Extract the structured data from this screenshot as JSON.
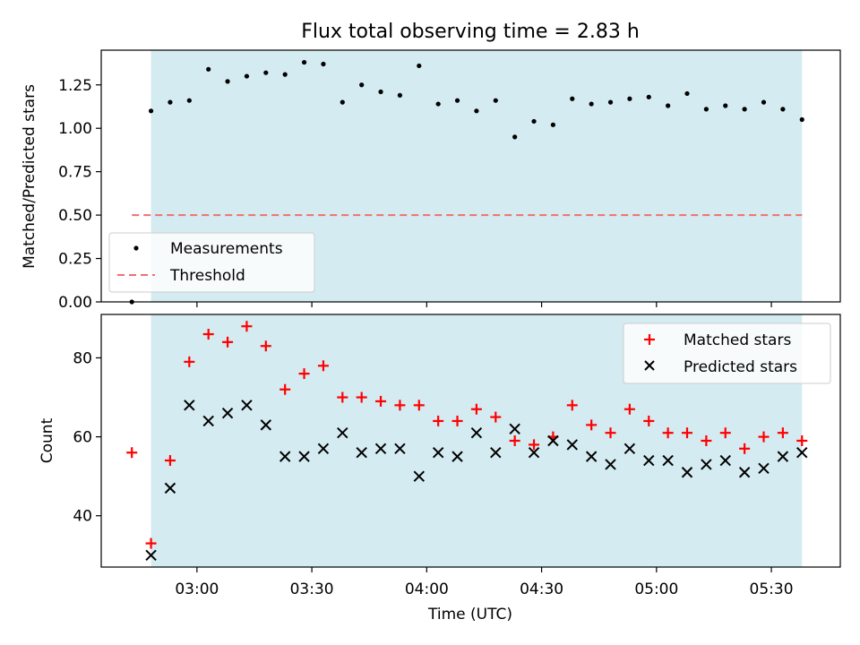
{
  "chart_data": [
    {
      "type": "scatter",
      "title": "Flux total observing time = 2.83 h",
      "xlabel": "",
      "ylabel": "Matched/Predicted stars",
      "ylim": [
        0,
        1.45
      ],
      "yticks": [
        0.0,
        0.25,
        0.5,
        0.75,
        1.0,
        1.25
      ],
      "ytick_labels": [
        "0.00",
        "0.25",
        "0.50",
        "0.75",
        "1.00",
        "1.25"
      ],
      "xlim": [
        "02:35",
        "05:48"
      ],
      "shaded_interval": [
        "02:48",
        "05:38"
      ],
      "shade_color": "#d4ebf1",
      "legend_position": "lower-left",
      "series": [
        {
          "name": "Measurements",
          "marker": "dot",
          "color": "#000000",
          "x": [
            "02:43",
            "02:48",
            "02:53",
            "02:58",
            "03:03",
            "03:08",
            "03:13",
            "03:18",
            "03:23",
            "03:28",
            "03:33",
            "03:38",
            "03:43",
            "03:48",
            "03:53",
            "03:58",
            "04:03",
            "04:08",
            "04:13",
            "04:18",
            "04:23",
            "04:28",
            "04:33",
            "04:38",
            "04:43",
            "04:48",
            "04:53",
            "04:58",
            "05:03",
            "05:08",
            "05:13",
            "05:18",
            "05:23",
            "05:28",
            "05:33",
            "05:38"
          ],
          "y": [
            0.0,
            1.1,
            1.15,
            1.16,
            1.34,
            1.27,
            1.3,
            1.32,
            1.31,
            1.38,
            1.37,
            1.15,
            1.25,
            1.21,
            1.19,
            1.36,
            1.14,
            1.16,
            1.1,
            1.16,
            0.95,
            1.04,
            1.02,
            1.17,
            1.14,
            1.15,
            1.17,
            1.18,
            1.13,
            1.2,
            1.11,
            1.13,
            1.11,
            1.15,
            1.11,
            1.05
          ]
        },
        {
          "name": "Threshold",
          "style": "dashed",
          "color": "#f07070",
          "x": [
            "02:43",
            "05:38"
          ],
          "y": [
            0.5,
            0.5
          ]
        }
      ]
    },
    {
      "type": "scatter",
      "title": "",
      "xlabel": "Time (UTC)",
      "ylabel": "Count",
      "ylim": [
        27,
        91
      ],
      "yticks": [
        40,
        60,
        80
      ],
      "ytick_labels": [
        "40",
        "60",
        "80"
      ],
      "xlim": [
        "02:35",
        "05:48"
      ],
      "xticks": [
        "03:00",
        "03:30",
        "04:00",
        "04:30",
        "05:00",
        "05:30"
      ],
      "shaded_interval": [
        "02:48",
        "05:38"
      ],
      "shade_color": "#d4ebf1",
      "legend_position": "top-right",
      "series": [
        {
          "name": "Matched stars",
          "marker": "plus",
          "color": "#ff0000",
          "x": [
            "02:43",
            "02:48",
            "02:53",
            "02:58",
            "03:03",
            "03:08",
            "03:13",
            "03:18",
            "03:23",
            "03:28",
            "03:33",
            "03:38",
            "03:43",
            "03:48",
            "03:53",
            "03:58",
            "04:03",
            "04:08",
            "04:13",
            "04:18",
            "04:23",
            "04:28",
            "04:33",
            "04:38",
            "04:43",
            "04:48",
            "04:53",
            "04:58",
            "05:03",
            "05:08",
            "05:13",
            "05:18",
            "05:23",
            "05:28",
            "05:33",
            "05:38"
          ],
          "y": [
            56,
            33,
            54,
            79,
            86,
            84,
            88,
            83,
            72,
            76,
            78,
            70,
            70,
            69,
            68,
            68,
            64,
            64,
            67,
            65,
            59,
            58,
            60,
            68,
            63,
            61,
            67,
            64,
            61,
            61,
            59,
            61,
            57,
            60,
            61,
            59
          ]
        },
        {
          "name": "Predicted stars",
          "marker": "x",
          "color": "#000000",
          "x": [
            "02:48",
            "02:53",
            "02:58",
            "03:03",
            "03:08",
            "03:13",
            "03:18",
            "03:23",
            "03:28",
            "03:33",
            "03:38",
            "03:43",
            "03:48",
            "03:53",
            "03:58",
            "04:03",
            "04:08",
            "04:13",
            "04:18",
            "04:23",
            "04:28",
            "04:33",
            "04:38",
            "04:43",
            "04:48",
            "04:53",
            "04:58",
            "05:03",
            "05:08",
            "05:13",
            "05:18",
            "05:23",
            "05:28",
            "05:33",
            "05:38"
          ],
          "y": [
            30,
            47,
            68,
            64,
            66,
            68,
            63,
            55,
            55,
            57,
            61,
            56,
            57,
            57,
            50,
            56,
            55,
            61,
            56,
            62,
            56,
            59,
            58,
            55,
            53,
            57,
            54,
            54,
            51,
            53,
            54,
            51,
            52,
            55,
            56
          ]
        }
      ]
    }
  ]
}
